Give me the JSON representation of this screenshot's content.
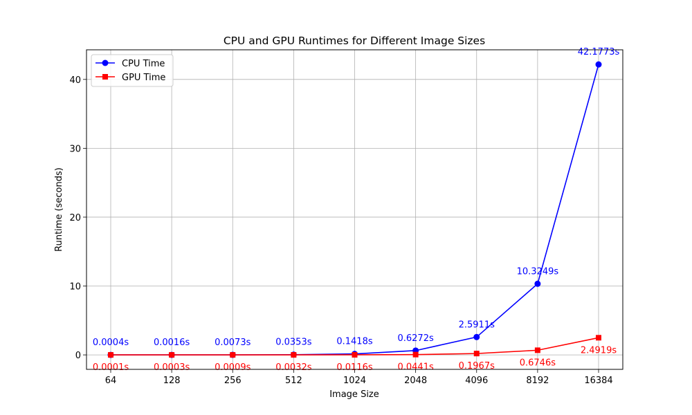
{
  "chart_data": {
    "type": "line",
    "title": "CPU and GPU Runtimes for Different Image Sizes",
    "xlabel": "Image Size",
    "ylabel": "Runtime (seconds)",
    "categories": [
      "64",
      "128",
      "256",
      "512",
      "1024",
      "2048",
      "4096",
      "8192",
      "16384"
    ],
    "ylim": [
      -2.1,
      44.3
    ],
    "yticks": [
      0,
      10,
      20,
      30,
      40
    ],
    "grid": true,
    "legend_position": "top-left",
    "series": [
      {
        "name": "CPU Time",
        "color": "#0000ff",
        "marker": "circle",
        "values": [
          0.0004,
          0.0016,
          0.0073,
          0.0353,
          0.1418,
          0.6272,
          2.5911,
          10.3249,
          42.1773
        ],
        "labels": [
          "0.0004s",
          "0.0016s",
          "0.0073s",
          "0.0353s",
          "0.1418s",
          "0.6272s",
          "2.5911s",
          "10.3249s",
          "42.1773s"
        ]
      },
      {
        "name": "GPU Time",
        "color": "#ff0000",
        "marker": "square",
        "values": [
          0.0001,
          0.0003,
          0.0009,
          0.0032,
          0.0116,
          0.0441,
          0.1967,
          0.6746,
          2.4919
        ],
        "labels": [
          "0.0001s",
          "0.0003s",
          "0.0009s",
          "0.0032s",
          "0.0116s",
          "0.0441s",
          "0.1967s",
          "0.6746s",
          "2.4919s"
        ]
      }
    ]
  }
}
